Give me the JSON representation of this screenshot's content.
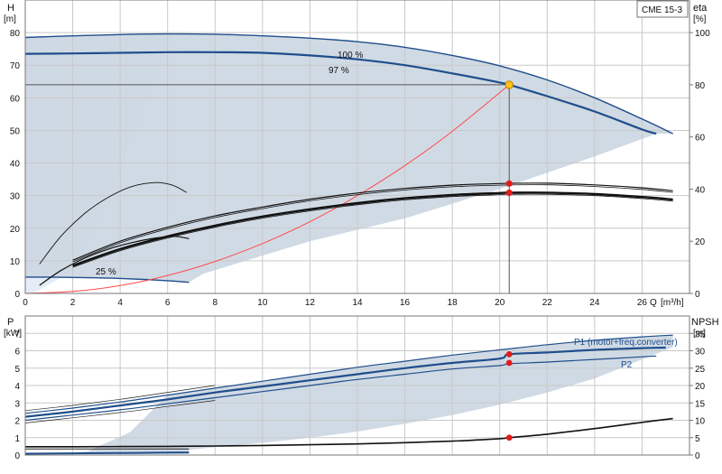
{
  "colors": {
    "band": "#cdd8e3",
    "band_light": "#e4edf6",
    "curve_blue": "#1f4e8c",
    "curve_black": "#111111",
    "system": "#ff4a4a",
    "grid": "#c9c9c9",
    "dot": "#e21b1b",
    "op_point": "#ffc21a"
  },
  "product_label": "CME 15-3",
  "chart_data": [
    {
      "id": "head",
      "type": "line",
      "ylabel": "H",
      "yunit": "[m]",
      "y2label": "eta",
      "y2unit": "[%]",
      "xlabel": "Q",
      "xunit": "[m³/h]",
      "xlim": [
        0,
        28
      ],
      "ylim": [
        0,
        90
      ],
      "y2lim": [
        0,
        112.5
      ],
      "xticks": [
        0,
        2,
        4,
        6,
        8,
        10,
        12,
        14,
        16,
        18,
        20,
        22,
        24,
        26
      ],
      "yticks": [
        0,
        10,
        20,
        30,
        40,
        50,
        60,
        70,
        80
      ],
      "y2ticks": [
        0,
        20,
        40,
        60,
        80,
        100
      ],
      "grid": true,
      "curve_labels": [
        "100 %",
        "97 %",
        "25 %"
      ],
      "series": [
        {
          "name": "100 %",
          "role": "qh_max",
          "x": [
            0,
            2,
            4,
            6,
            8,
            10,
            12,
            14,
            16,
            18,
            20,
            22,
            24,
            26,
            27.3
          ],
          "y": [
            78.5,
            79,
            79.4,
            79.6,
            79.5,
            79,
            78.3,
            77.2,
            75.5,
            73,
            69.8,
            65.5,
            60,
            53.5,
            49
          ]
        },
        {
          "name": "97 %",
          "role": "qh_duty",
          "x": [
            0,
            2,
            4,
            6,
            8,
            10,
            12,
            14,
            16,
            18,
            20,
            20.4,
            22,
            24,
            26,
            26.6
          ],
          "y": [
            73.5,
            73.6,
            73.8,
            74,
            74,
            73.8,
            73,
            71.8,
            70,
            67.5,
            64.7,
            64,
            60.5,
            55.8,
            50.3,
            49
          ]
        },
        {
          "name": "25 %",
          "role": "qh_min",
          "x": [
            0,
            1,
            2,
            3,
            4,
            5,
            6,
            6.9
          ],
          "y": [
            5,
            5,
            4.9,
            4.8,
            4.6,
            4.3,
            3.9,
            3.4
          ]
        },
        {
          "name": "",
          "role": "system_curve",
          "x": [
            0,
            2,
            4,
            6,
            8,
            10,
            12,
            14,
            16,
            18,
            20.4
          ],
          "y": [
            0,
            0.6,
            2.4,
            5.5,
            9.8,
            15.3,
            22,
            30,
            39.2,
            49.7,
            64
          ]
        },
        {
          "name": "",
          "role": "eta_max",
          "x": [
            2,
            4,
            6,
            8,
            10,
            12,
            14,
            16,
            18,
            20,
            22,
            24,
            26,
            27.3
          ],
          "y": [
            10.2,
            16,
            20.3,
            23.8,
            26.5,
            28.9,
            30.8,
            32.2,
            33.2,
            33.7,
            33.8,
            33.3,
            32.4,
            31.5
          ]
        },
        {
          "name": "",
          "role": "eta_duty",
          "x": [
            2,
            4,
            6,
            8,
            10,
            12,
            14,
            16,
            18,
            20,
            20.4,
            22,
            24,
            26,
            27.3
          ],
          "y": [
            8.5,
            13.6,
            17.5,
            20.8,
            23.6,
            25.8,
            27.7,
            29.2,
            30.2,
            30.8,
            30.9,
            30.9,
            30.5,
            29.6,
            28.8
          ]
        },
        {
          "name": "",
          "role": "eta_min",
          "x": [
            0.6,
            1.5,
            2.5,
            3.5,
            4.5,
            5.5,
            6.3,
            6.9
          ],
          "y": [
            2.5,
            7,
            10.8,
            13.6,
            15.6,
            17,
            17.5,
            16.8
          ]
        },
        {
          "name": "",
          "role": "eta_thin",
          "x": [
            0.6,
            1.5,
            2.5,
            3.5,
            4.5,
            5.5,
            6.2,
            6.8
          ],
          "y": [
            9,
            17.5,
            24.5,
            29.5,
            32.8,
            34,
            33.2,
            31
          ]
        }
      ],
      "operating_point": {
        "x": 20.4,
        "y": 64
      },
      "eta_points": [
        {
          "x": 20.4,
          "y": 33.7
        },
        {
          "x": 20.4,
          "y": 30.9
        }
      ]
    },
    {
      "id": "power",
      "type": "line",
      "ylabel": "P",
      "yunit": "[kW]",
      "y2label": "NPSH",
      "y2unit": "[m]",
      "xlim": [
        0,
        28
      ],
      "ylim": [
        0,
        8
      ],
      "y2lim": [
        0,
        40
      ],
      "yticks": [
        0,
        1,
        2,
        3,
        4,
        5,
        6,
        7
      ],
      "y2ticks": [
        0,
        5,
        10,
        15,
        20,
        25,
        30,
        35
      ],
      "grid": true,
      "series_labels": [
        "P1 (motor+freq.converter)",
        "P2"
      ],
      "series": [
        {
          "name": "P1 (motor+freq.converter)",
          "role": "p1",
          "x": [
            0,
            2,
            4,
            6,
            8,
            10,
            12,
            14,
            16,
            18,
            20,
            22,
            24,
            26,
            27.3
          ],
          "y": [
            2.4,
            2.7,
            3.05,
            3.45,
            3.85,
            4.25,
            4.65,
            5.05,
            5.4,
            5.75,
            6.05,
            6.35,
            6.6,
            6.8,
            6.9
          ]
        },
        {
          "name": "",
          "role": "p1_duty",
          "x": [
            0,
            2,
            4,
            6,
            8,
            10,
            12,
            14,
            16,
            18,
            20,
            20.4,
            22,
            24,
            26,
            27
          ],
          "y": [
            2.2,
            2.5,
            2.85,
            3.2,
            3.6,
            3.95,
            4.3,
            4.65,
            5,
            5.3,
            5.55,
            5.8,
            5.9,
            6.05,
            6.15,
            6.18
          ]
        },
        {
          "name": "P2",
          "role": "p2",
          "x": [
            0,
            2,
            4,
            6,
            8,
            10,
            12,
            14,
            16,
            18,
            20,
            20.4,
            22,
            24,
            26,
            26.6
          ],
          "y": [
            2,
            2.3,
            2.6,
            2.95,
            3.3,
            3.65,
            4,
            4.35,
            4.65,
            4.95,
            5.15,
            5.25,
            5.35,
            5.5,
            5.65,
            5.7
          ]
        },
        {
          "name": "",
          "role": "p_min",
          "x": [
            0,
            2,
            4,
            6,
            6.9
          ],
          "y": [
            0.08,
            0.1,
            0.12,
            0.14,
            0.15
          ]
        },
        {
          "name": "",
          "role": "npsh",
          "x": [
            0,
            2,
            4,
            6,
            8,
            10,
            12,
            14,
            16,
            18,
            20,
            20.4,
            22,
            24,
            26,
            27.3
          ],
          "y": [
            2.4,
            2.4,
            2.45,
            2.5,
            2.6,
            2.75,
            2.95,
            3.2,
            3.55,
            4,
            4.7,
            5,
            6,
            7.6,
            9.4,
            10.5
          ],
          "axis": "y2"
        }
      ],
      "duty_points": [
        {
          "x": 20.4,
          "y": 5.8
        },
        {
          "x": 20.4,
          "y": 5.3
        },
        {
          "x": 20.4,
          "y": 5,
          "axis": "y2"
        }
      ]
    }
  ]
}
